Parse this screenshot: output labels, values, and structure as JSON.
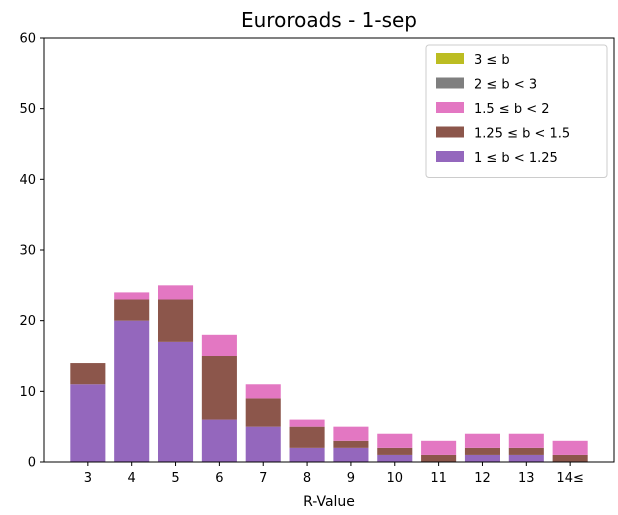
{
  "chart_data": {
    "type": "bar",
    "stacked": true,
    "title": "Euroroads - 1-sep",
    "xlabel": "R-Value",
    "ylabel": "",
    "ylim": [
      0,
      60
    ],
    "yticks": [
      0,
      10,
      20,
      30,
      40,
      50,
      60
    ],
    "categories": [
      "3",
      "4",
      "5",
      "6",
      "7",
      "8",
      "9",
      "10",
      "11",
      "12",
      "13",
      "14≤"
    ],
    "series": [
      {
        "name": "1 ≤ b < 1.25",
        "color": "#9467bd",
        "values": [
          11,
          20,
          17,
          6,
          5,
          2,
          2,
          1,
          0,
          1,
          1,
          0
        ]
      },
      {
        "name": "1.25 ≤ b < 1.5",
        "color": "#8c564b",
        "values": [
          3,
          3,
          6,
          9,
          4,
          3,
          1,
          1,
          1,
          1,
          1,
          1
        ]
      },
      {
        "name": "1.5 ≤ b < 2",
        "color": "#e377c2",
        "values": [
          0,
          1,
          2,
          3,
          2,
          1,
          2,
          2,
          2,
          2,
          2,
          2
        ]
      },
      {
        "name": "2 ≤ b < 3",
        "color": "#7f7f7f",
        "values": [
          0,
          0,
          0,
          0,
          0,
          0,
          0,
          0,
          0,
          0,
          0,
          0
        ]
      },
      {
        "name": "3 ≤ b",
        "color": "#bcbd22",
        "values": [
          0,
          0,
          0,
          0,
          0,
          0,
          0,
          0,
          0,
          0,
          0,
          0
        ]
      }
    ],
    "legend": {
      "position": "top-right",
      "order": [
        "3 ≤ b",
        "2 ≤ b < 3",
        "1.5 ≤ b < 2",
        "1.25 ≤ b < 1.5",
        "1 ≤ b < 1.25"
      ]
    },
    "grid": false
  }
}
